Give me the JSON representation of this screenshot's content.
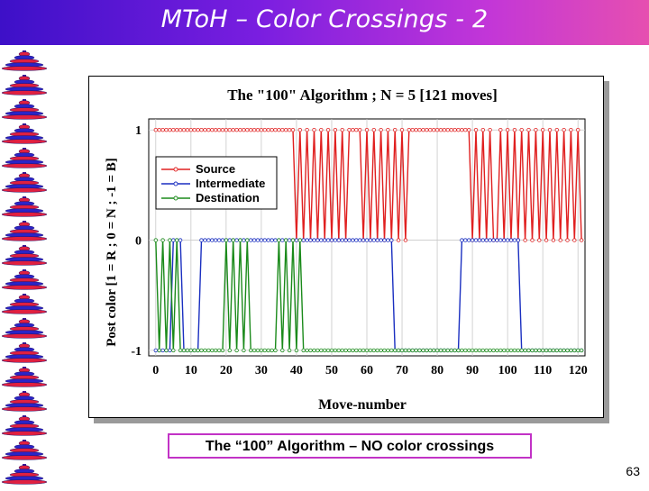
{
  "slide": {
    "title": "MToH – Color Crossings - 2",
    "caption": "The “100” Algorithm – NO color crossings",
    "page_number": "63"
  },
  "colors": {
    "title_gradient_start": "#3d10c8",
    "title_gradient_end": "#e64fb0",
    "caption_border": "#c232c6",
    "source": "#e02020",
    "intermediate": "#1a2fc0",
    "destination": "#1a8a1a",
    "grid": "#c8c8c8",
    "disc_red": "#e02040",
    "disc_blue": "#2a24c8"
  },
  "sidebar": {
    "icon": "tower-of-hanoi-icon"
  },
  "chart_data": {
    "type": "line",
    "title": "The \"100\" Algorithm ; N = 5 [121 moves]",
    "xlabel": "Move-number",
    "ylabel": "Post color [1 = R ; 0 = N ; -1 = B]",
    "xlim": [
      -2,
      122
    ],
    "ylim": [
      -1.05,
      1.1
    ],
    "xticks": [
      0,
      10,
      20,
      30,
      40,
      50,
      60,
      70,
      80,
      90,
      100,
      110,
      120
    ],
    "yticks": [
      1,
      0,
      -1
    ],
    "grid": true,
    "legend": {
      "position": "top-left",
      "entries": [
        "Source",
        "Intermediate",
        "Destination"
      ]
    },
    "x": [
      0,
      121
    ],
    "series": [
      {
        "name": "Source",
        "base": 1,
        "default": 1,
        "spikes": [
          {
            "start": 40,
            "end": 55,
            "value": 0
          },
          {
            "start": 59,
            "end": 71,
            "value": 0
          },
          {
            "start": 90,
            "end": 96,
            "value": 0
          },
          {
            "start": 97,
            "end": 121,
            "value": 0
          }
        ]
      },
      {
        "name": "Intermediate",
        "base": -1,
        "default": 0,
        "spikes": [
          {
            "start": 0,
            "end": 4,
            "value": -1
          },
          {
            "start": 8,
            "end": 12,
            "value": -1
          },
          {
            "start": 68,
            "end": 77,
            "value": -1
          },
          {
            "start": 78,
            "end": 86,
            "value": -1
          },
          {
            "start": 104,
            "end": 121,
            "value": -1
          }
        ]
      },
      {
        "name": "Destination",
        "base": -1,
        "default": -1,
        "spikes": [
          {
            "start": 0,
            "end": 6,
            "value": 0
          },
          {
            "start": 20,
            "end": 27,
            "value": 0
          },
          {
            "start": 35,
            "end": 41,
            "value": 0
          }
        ]
      }
    ]
  }
}
